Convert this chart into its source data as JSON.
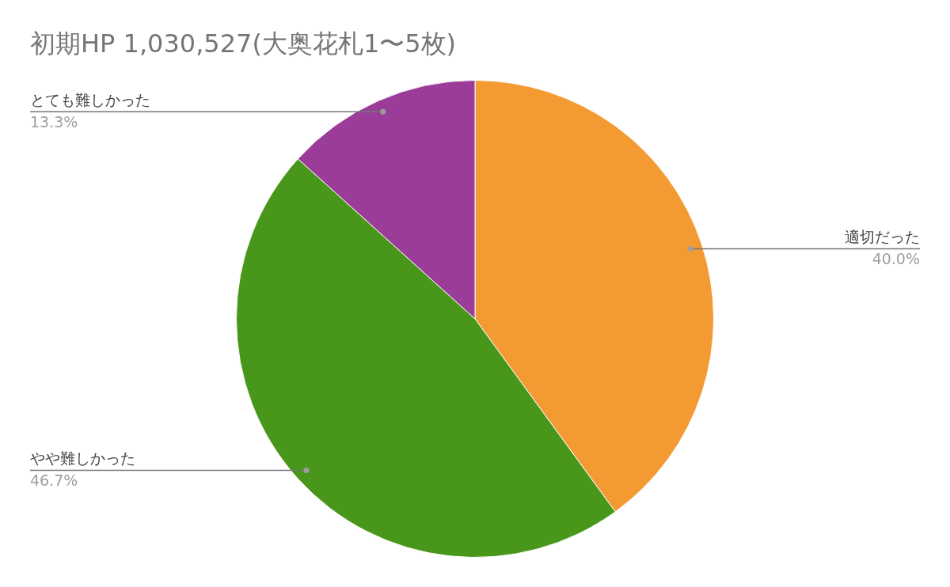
{
  "chart_data": {
    "type": "pie",
    "title": "初期HP 1,030,527(大奥花札1〜5枚)",
    "categories": [
      "適切だった",
      "やや難しかった",
      "とても難しかった"
    ],
    "values": [
      40.0,
      46.7,
      13.3
    ],
    "colors": [
      "#f39a32",
      "#48961a",
      "#9a3c98"
    ],
    "value_labels": [
      "40.0%",
      "46.7%",
      "13.3%"
    ],
    "legend": false
  }
}
